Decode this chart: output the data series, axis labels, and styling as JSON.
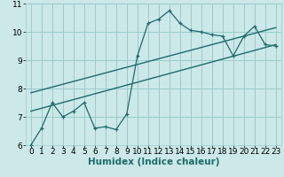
{
  "xlabel": "Humidex (Indice chaleur)",
  "bg_color": "#cce8e8",
  "grid_color": "#99cccc",
  "line_color": "#1e6b6b",
  "xlim": [
    -0.5,
    23.5
  ],
  "ylim": [
    6,
    11
  ],
  "xticks": [
    0,
    1,
    2,
    3,
    4,
    5,
    6,
    7,
    8,
    9,
    10,
    11,
    12,
    13,
    14,
    15,
    16,
    17,
    18,
    19,
    20,
    21,
    22,
    23
  ],
  "yticks": [
    6,
    7,
    8,
    9,
    10,
    11
  ],
  "data_x": [
    0,
    1,
    2,
    3,
    4,
    5,
    6,
    7,
    8,
    9,
    10,
    11,
    12,
    13,
    14,
    15,
    16,
    17,
    18,
    19,
    20,
    21,
    22,
    23
  ],
  "data_y": [
    6.0,
    6.6,
    7.5,
    7.0,
    7.2,
    7.5,
    6.6,
    6.65,
    6.55,
    7.1,
    9.15,
    10.3,
    10.45,
    10.75,
    10.3,
    10.05,
    10.0,
    9.9,
    9.85,
    9.15,
    9.85,
    10.2,
    9.55,
    9.5
  ],
  "line1_x": [
    0,
    23
  ],
  "line1_y": [
    7.2,
    9.55
  ],
  "line2_x": [
    0,
    23
  ],
  "line2_y": [
    7.85,
    10.15
  ],
  "xlabel_fontsize": 7.5,
  "tick_fontsize": 6.5,
  "xlabel_weight": "bold"
}
